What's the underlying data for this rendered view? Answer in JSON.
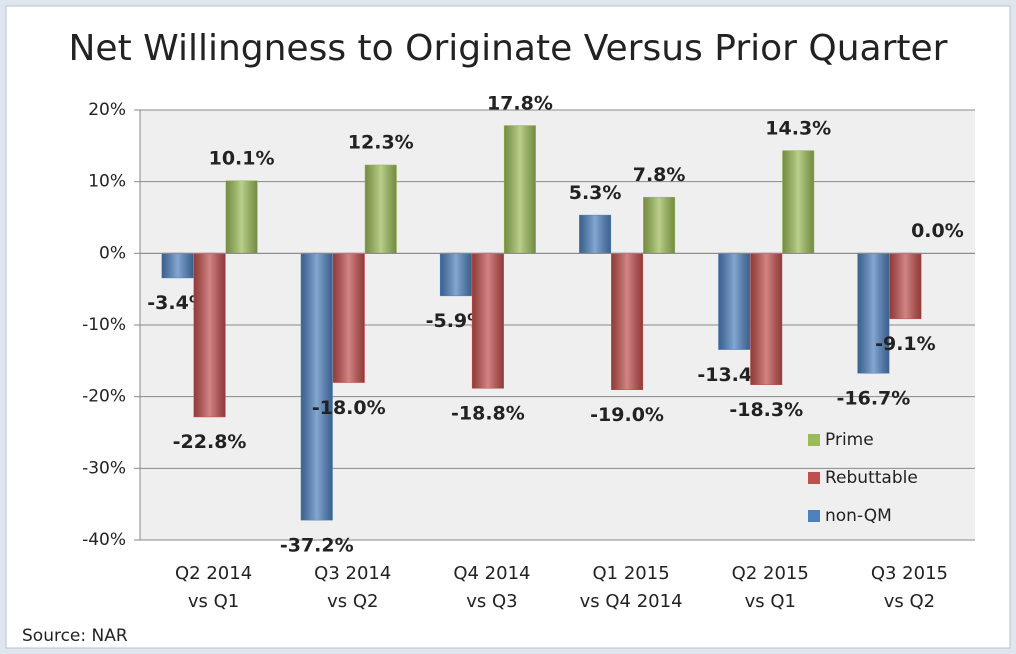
{
  "chart_data": {
    "type": "bar",
    "title": "Net Willingness to Originate Versus Prior Quarter",
    "categories": [
      [
        "Q2 2014",
        "vs Q1"
      ],
      [
        "Q3 2014",
        "vs Q2"
      ],
      [
        "Q4 2014",
        "vs Q3"
      ],
      [
        "Q1 2015",
        "vs Q4 2014"
      ],
      [
        "Q2 2015",
        "vs Q1"
      ],
      [
        "Q3 2015",
        "vs Q2"
      ]
    ],
    "series": [
      {
        "name": "non-QM",
        "color": "#4f81bd",
        "values": [
          -3.4,
          -37.2,
          -5.9,
          5.3,
          -13.4,
          -16.7
        ],
        "value_labels": [
          "-3.4%",
          "-37.2%",
          "-5.9%",
          "5.3%",
          "-13.4%",
          "-16.7%"
        ]
      },
      {
        "name": "Rebuttable",
        "color": "#c0504d",
        "values": [
          -22.8,
          -18.0,
          -18.8,
          -19.0,
          -18.3,
          -9.1
        ],
        "value_labels": [
          "-22.8%",
          "-18.0%",
          "-18.8%",
          "-19.0%",
          "-18.3%",
          "-9.1%"
        ]
      },
      {
        "name": "Prime",
        "color": "#9bbb59",
        "values": [
          10.1,
          12.3,
          17.8,
          7.8,
          14.3,
          0.0
        ],
        "value_labels": [
          "10.1%",
          "12.3%",
          "17.8%",
          "7.8%",
          "14.3%",
          "0.0%"
        ]
      }
    ],
    "ylim": [
      -40,
      20
    ],
    "yticks": [
      {
        "value": -40,
        "label": "-40%"
      },
      {
        "value": -30,
        "label": "-30%"
      },
      {
        "value": -20,
        "label": "-20%"
      },
      {
        "value": -10,
        "label": "-10%"
      },
      {
        "value": 0,
        "label": "0%"
      },
      {
        "value": 10,
        "label": "10%"
      },
      {
        "value": 20,
        "label": "20%"
      }
    ],
    "grid": true,
    "legend": "lower right",
    "source": "Source: NAR"
  }
}
